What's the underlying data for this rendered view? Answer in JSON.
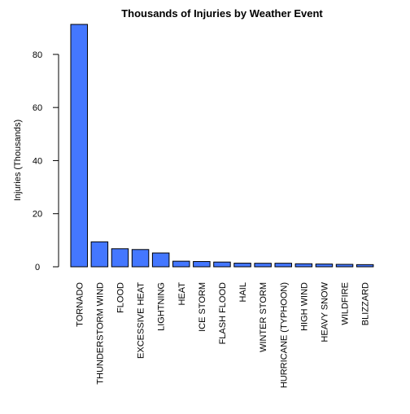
{
  "chart_data": {
    "type": "bar",
    "title": "Thousands of Injuries by Weather Event",
    "xlabel": "",
    "ylabel": "Injuries (Thousands)",
    "categories": [
      "TORNADO",
      "THUNDERSTORM WIND",
      "FLOOD",
      "EXCESSIVE HEAT",
      "LIGHTNING",
      "HEAT",
      "ICE STORM",
      "FLASH FLOOD",
      "HAIL",
      "WINTER STORM",
      "HURRICANE (TYPHOON)",
      "HIGH WIND",
      "HEAVY SNOW",
      "WILDFIRE",
      "BLIZZARD"
    ],
    "values": [
      91.3,
      9.4,
      6.8,
      6.5,
      5.2,
      2.1,
      1.98,
      1.78,
      1.36,
      1.32,
      1.33,
      1.14,
      1.03,
      0.91,
      0.81
    ],
    "yticks": [
      0,
      20,
      40,
      60,
      80
    ],
    "ylim": [
      0,
      91.3
    ],
    "grid": false,
    "bar_color": "#4477ff",
    "bar_border_color": "#000000"
  }
}
